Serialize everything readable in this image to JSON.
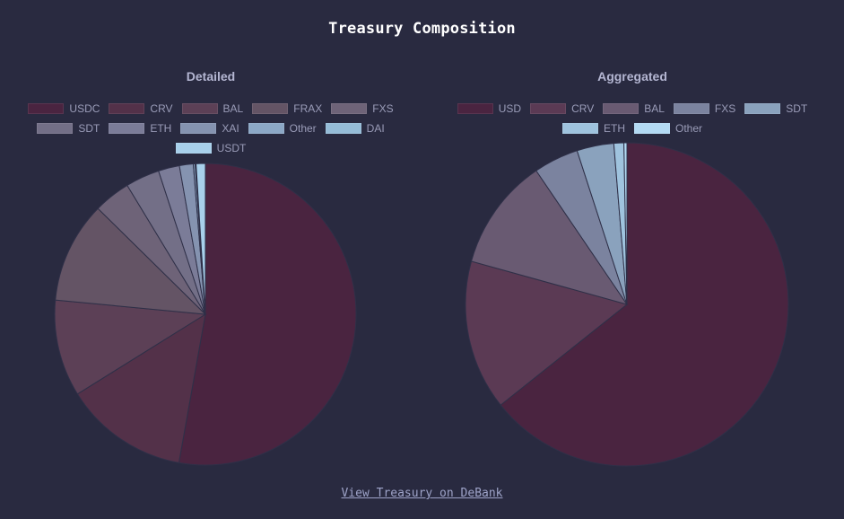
{
  "title": "Treasury Composition",
  "footer": {
    "link_label": "View Treasury on DeBank"
  },
  "chart_data": [
    {
      "type": "pie",
      "title": "Detailed",
      "categories": [
        "USDC",
        "CRV",
        "BAL",
        "FRAX",
        "FXS",
        "SDT",
        "ETH",
        "XAI",
        "Other",
        "DAI",
        "USDT"
      ],
      "values": [
        53.5,
        13.5,
        10.5,
        11.0,
        4.0,
        3.7,
        2.3,
        1.5,
        0.2,
        0.1,
        1.0
      ],
      "colors": [
        "#4a2440",
        "#533149",
        "#5c4056",
        "#645465",
        "#6e6378",
        "#736f87",
        "#7b7c98",
        "#8593b0",
        "#8ca8c6",
        "#95bcd7",
        "#a8d0eb"
      ],
      "legend_position": "top"
    },
    {
      "type": "pie",
      "title": "Aggregated",
      "categories": [
        "USD",
        "CRV",
        "BAL",
        "FXS",
        "SDT",
        "ETH",
        "Other"
      ],
      "values": [
        64.3,
        15.0,
        11.2,
        4.5,
        3.7,
        1.0,
        0.3
      ],
      "colors": [
        "#4a2440",
        "#5b3a54",
        "#695a72",
        "#7b839f",
        "#8aa2bd",
        "#9fc3de",
        "#b3daf3"
      ],
      "legend_position": "top"
    }
  ]
}
